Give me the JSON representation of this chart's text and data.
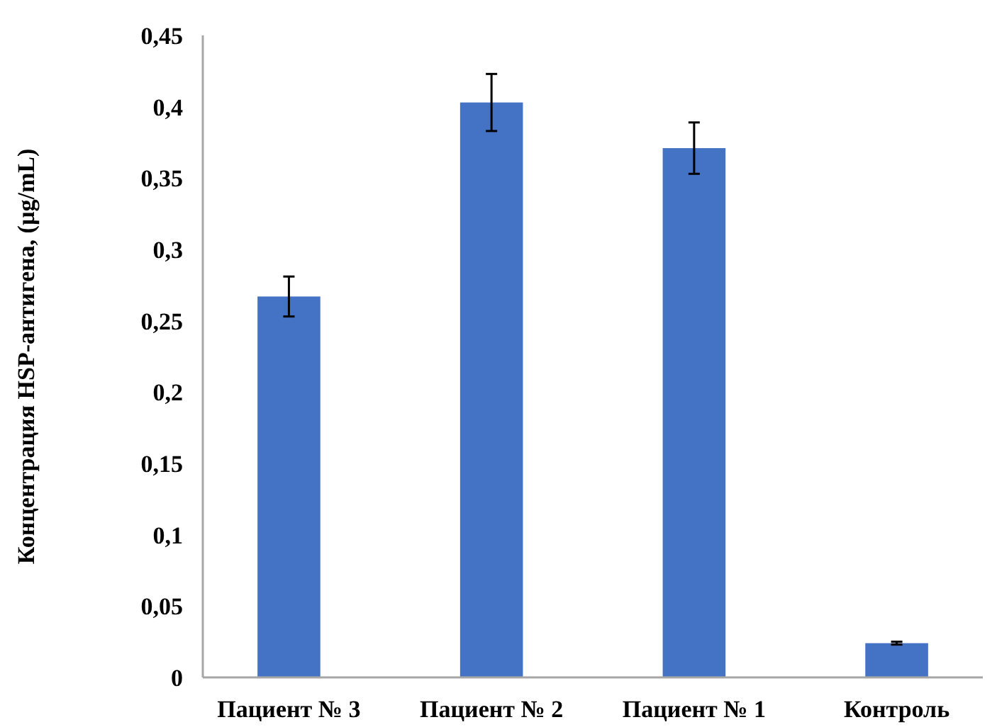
{
  "chart_data": {
    "type": "bar",
    "ylabel": "Концентрация HSP-антигена, (µg/mL)",
    "categories": [
      "Пациент № 3",
      "Пациент № 2",
      "Пациент № 1",
      "Контроль"
    ],
    "values": [
      0.267,
      0.403,
      0.371,
      0.024
    ],
    "errors": [
      0.014,
      0.02,
      0.018,
      0.001
    ],
    "color": "#4472c4",
    "ylim": [
      0,
      0.45
    ],
    "yticks": [
      {
        "value": 0,
        "label": "0"
      },
      {
        "value": 0.05,
        "label": "0,05"
      },
      {
        "value": 0.1,
        "label": "0,1"
      },
      {
        "value": 0.15,
        "label": "0,15"
      },
      {
        "value": 0.2,
        "label": "0,2"
      },
      {
        "value": 0.25,
        "label": "0,25"
      },
      {
        "value": 0.3,
        "label": "0,3"
      },
      {
        "value": 0.35,
        "label": "0,35"
      },
      {
        "value": 0.4,
        "label": "0,4"
      },
      {
        "value": 0.45,
        "label": "0,45"
      }
    ],
    "grid": false
  }
}
